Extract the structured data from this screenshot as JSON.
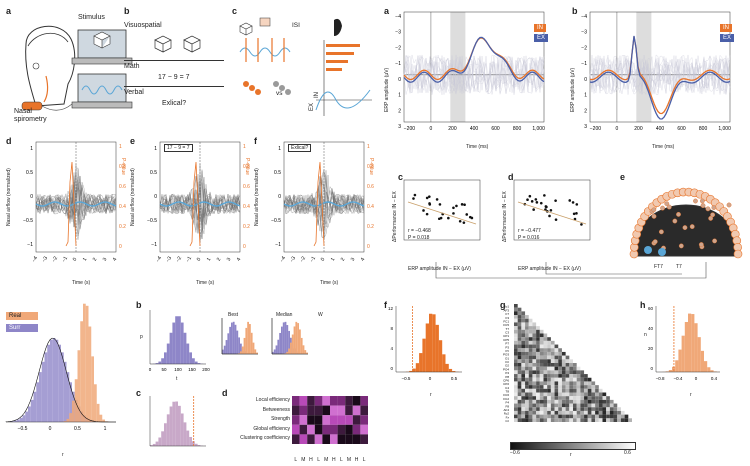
{
  "colors": {
    "orange": "#e8742a",
    "blue": "#4a5fa8",
    "lightblue": "#5aa6d6",
    "purple": "#8e86c8",
    "peach": "#f0a878",
    "gray": "#9a9a9a"
  },
  "p1": {
    "label_a": "a",
    "stimulus": "Stimulus",
    "nasal": "Nasal",
    "spirometry": "spirometry",
    "label_b": "b",
    "visuospatial": "Visuospatial",
    "math": "Math",
    "equation": "17 − 9 = 7",
    "verbal": "Verbal",
    "exlical": "Exlical?",
    "label_c": "c",
    "isi": "ISI",
    "vs": "vs",
    "in": "IN",
    "ex": "EX",
    "label_d": "d",
    "label_e": "e",
    "label_f": "f",
    "airflow_y": "Nasal airflow (normalized)",
    "pvalue": "P-value",
    "time_s": "Time (s)",
    "math_box": "17 − 9 = 7",
    "verbal_box": "Exlical?",
    "xticks_s": [
      "−4",
      "−3",
      "−2",
      "−1",
      "0",
      "1",
      "2",
      "3",
      "4"
    ],
    "yticks_air": [
      "1",
      "0.5",
      "0",
      "−0.5",
      "−1"
    ],
    "pticks": [
      "1",
      "0.8",
      "0.6",
      "0.4",
      "0.2",
      "0"
    ]
  },
  "p2": {
    "label_a": "a",
    "label_b": "b",
    "label_c": "c",
    "label_d": "d",
    "label_e": "e",
    "erp_y": "ERP amplitude (μV)",
    "time_ms": "Time (ms)",
    "in": "IN",
    "ex": "EX",
    "xticks_ms": [
      "−200",
      "0",
      "200",
      "400",
      "600",
      "800",
      "1,000"
    ],
    "yticks_erp": [
      "−4",
      "−3",
      "−2",
      "−1",
      "0",
      "1",
      "2",
      "3"
    ],
    "corr_c_r": "r = −0.468",
    "corr_c_p": "P = 0.018",
    "corr_d_r": "r = −0.477",
    "corr_d_p": "P = 0.016",
    "perf_y": "ΔPerformance IN − EX",
    "erp_x": "ERP amplitude   IN − EX (μV)",
    "ft7": "FT7",
    "t7": "T7"
  },
  "p3": {
    "legend_real": "Real",
    "legend_surr": "Surr",
    "r_axis": "r",
    "xticks_main": [
      "−0.5",
      "0",
      "0.5",
      "1"
    ],
    "label_b": "b",
    "label_c": "c",
    "label_d": "d",
    "label_f": "f",
    "label_g": "g",
    "label_h": "h",
    "best": "Best",
    "median": "Median",
    "w": "W",
    "b_xticks": [
      "0",
      "50",
      "100",
      "150",
      "200"
    ],
    "b_axis": "t",
    "b_p": "p",
    "metrics": [
      "Local efficiency",
      "Betweeness",
      "Strength",
      "Global efficiency",
      "Clustering coefficiency"
    ],
    "lmh": [
      "L",
      "M",
      "H",
      "L",
      "M",
      "H",
      "L",
      "M",
      "H",
      "L"
    ],
    "f_axis": "r",
    "f_yticks": [
      "12",
      "8",
      "4",
      "0"
    ],
    "f_xticks": [
      "−0.5",
      "0",
      "0.5"
    ],
    "g_cmin": "−0.6",
    "g_cmax": "0.6",
    "g_axis": "r",
    "g_rows": [
      "Fp1",
      "AF3",
      "F7",
      "F3",
      "FC1",
      "FC5",
      "T7",
      "C3",
      "CP1",
      "CP5",
      "P7",
      "P3",
      "Pz",
      "PO3",
      "O1",
      "Oz",
      "O2",
      "PO4",
      "P4",
      "P8",
      "CP6",
      "CP2",
      "C4",
      "T8",
      "FC6",
      "FC2",
      "F4",
      "F8",
      "AF4",
      "Fp2",
      "Fz",
      "Cz"
    ],
    "h_yticks": [
      "60",
      "40",
      "20",
      "0"
    ],
    "h_xticks": [
      "−0.8",
      "−0.4",
      "0",
      "0.4"
    ],
    "h_axis": "r",
    "h_n": "n"
  }
}
